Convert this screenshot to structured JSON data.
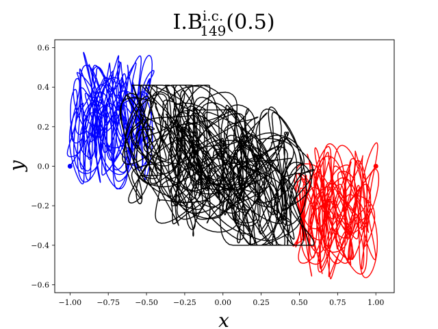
{
  "chart_data": {
    "type": "line",
    "title": {
      "base": "I.B",
      "superscript": "i.c.",
      "subscript": "149",
      "argument": "(0.5)"
    },
    "xlabel": "x",
    "ylabel": "y",
    "xlim": [
      -1.1,
      1.12
    ],
    "ylim": [
      -0.64,
      0.64
    ],
    "xticks": [
      -1.0,
      -0.75,
      -0.5,
      -0.25,
      0.0,
      0.25,
      0.5,
      0.75,
      1.0
    ],
    "xtick_labels": [
      "−1.00",
      "−0.75",
      "−0.50",
      "−0.25",
      "0.00",
      "0.25",
      "0.50",
      "0.75",
      "1.00"
    ],
    "yticks": [
      -0.6,
      -0.4,
      -0.2,
      0.0,
      0.2,
      0.4,
      0.6
    ],
    "ytick_labels": [
      "−0.6",
      "−0.4",
      "−0.2",
      "0.0",
      "0.2",
      "0.4",
      "0.6"
    ],
    "grid": false,
    "series": [
      {
        "color": "#0000ff",
        "start_point": [
          -1.0,
          0.0
        ],
        "x_range": [
          -1.02,
          -0.45
        ],
        "y_range": [
          -0.12,
          0.58
        ]
      },
      {
        "color": "#ff0000",
        "start_point": [
          1.0,
          0.0
        ],
        "x_range": [
          0.45,
          1.02
        ],
        "y_range": [
          -0.58,
          0.12
        ]
      },
      {
        "color": "#000000",
        "x_range": [
          -0.68,
          0.6
        ],
        "y_range": [
          -0.4,
          0.41
        ]
      }
    ]
  }
}
